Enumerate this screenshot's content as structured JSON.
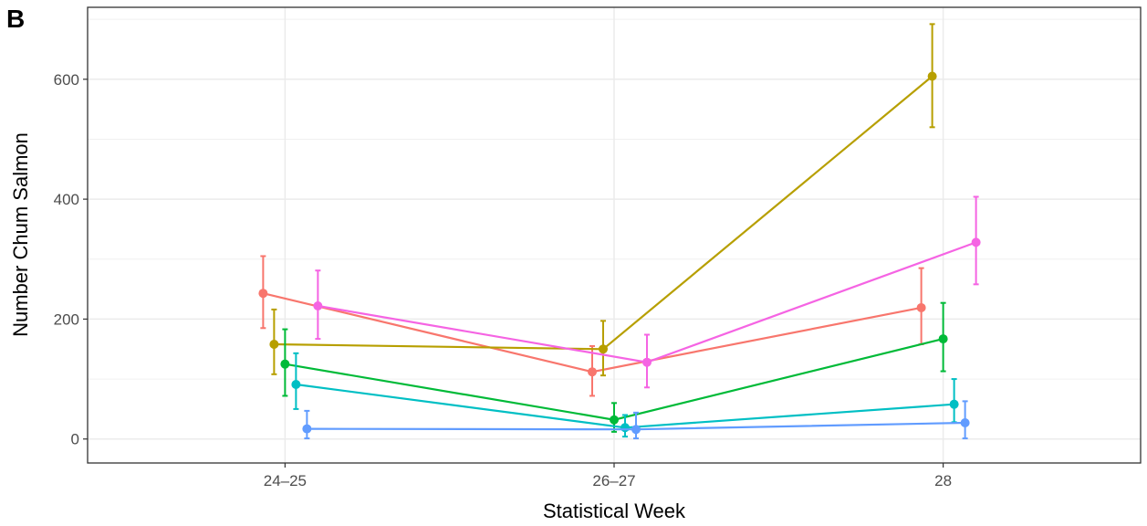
{
  "chart_data": {
    "type": "line",
    "panel_label": "B",
    "xlabel": "Statistical Week",
    "ylabel": "Number Chum Salmon",
    "categories": [
      "24–25",
      "26–27",
      "28"
    ],
    "ylim": [
      -40,
      720
    ],
    "yticks": [
      0,
      200,
      400,
      600
    ],
    "grid": true,
    "legend": "none",
    "series": [
      {
        "color": "#F8766D",
        "dodge": -2,
        "values": [
          243,
          112,
          219
        ],
        "lower": [
          185,
          72,
          158
        ],
        "upper": [
          305,
          155,
          285
        ]
      },
      {
        "color": "#B79F00",
        "dodge": -1,
        "values": [
          158,
          150,
          605
        ],
        "lower": [
          108,
          106,
          520
        ],
        "upper": [
          216,
          197,
          692
        ]
      },
      {
        "color": "#00BA38",
        "dodge": 0,
        "values": [
          125,
          32,
          167
        ],
        "lower": [
          72,
          12,
          113
        ],
        "upper": [
          183,
          60,
          227
        ]
      },
      {
        "color": "#00BFC4",
        "dodge": 1,
        "values": [
          91,
          19,
          58
        ],
        "lower": [
          50,
          4,
          28
        ],
        "upper": [
          143,
          40,
          100
        ]
      },
      {
        "color": "#619CFF",
        "dodge": 2,
        "values": [
          17,
          16,
          27
        ],
        "lower": [
          1,
          1,
          1
        ],
        "upper": [
          47,
          44,
          63
        ]
      },
      {
        "color": "#F564E3",
        "dodge": 3,
        "values": [
          222,
          128,
          328
        ],
        "lower": [
          167,
          86,
          258
        ],
        "upper": [
          281,
          174,
          404
        ]
      }
    ]
  }
}
